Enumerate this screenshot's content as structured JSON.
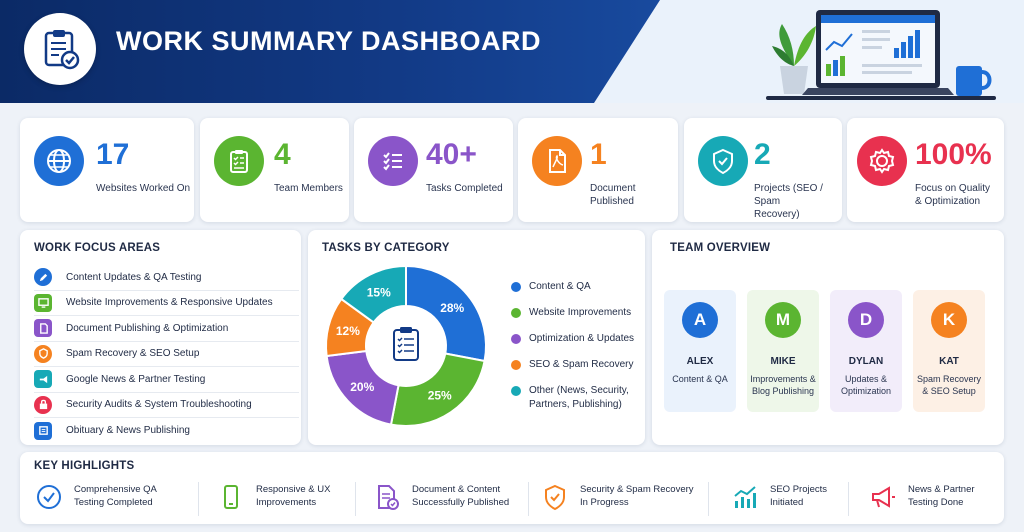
{
  "header": {
    "title": "WORK SUMMARY DASHBOARD"
  },
  "colors": {
    "navy": "#0b2a66",
    "blue": "#1f6fd6",
    "green": "#5bb531",
    "purple": "#8a55c9",
    "orange": "#f58220",
    "teal": "#17a9b6",
    "red": "#e8314f"
  },
  "stats": [
    {
      "value": "17",
      "label": "Websites Worked On",
      "icon": "globe-icon"
    },
    {
      "value": "4",
      "label": "Team Members",
      "icon": "clipboard-checklist-icon"
    },
    {
      "value": "40+",
      "label": "Tasks Completed",
      "icon": "task-list-icon"
    },
    {
      "value": "1",
      "label": "Document Published",
      "icon": "pdf-document-icon"
    },
    {
      "value": "2",
      "label_1": "Projects (SEO / Spam",
      "label_2": "Recovery)",
      "icon": "shield-check-icon"
    },
    {
      "value": "100%",
      "label_1": "Focus on Quality",
      "label_2": "& Optimization",
      "icon": "gear-icon"
    }
  ],
  "focus": {
    "title": "WORK FOCUS AREAS",
    "items": [
      {
        "label": "Content Updates & QA Testing",
        "icon": "pencil-icon"
      },
      {
        "label": "Website Improvements & Responsive Updates",
        "icon": "monitor-icon"
      },
      {
        "label": "Document Publishing & Optimization",
        "icon": "document-icon"
      },
      {
        "label": "Spam Recovery & SEO Setup",
        "icon": "shield-icon"
      },
      {
        "label": "Google News & Partner Testing",
        "icon": "megaphone-icon"
      },
      {
        "label": "Security Audits & System Troubleshooting",
        "icon": "lock-icon"
      },
      {
        "label": "Obituary & News Publishing",
        "icon": "newspaper-icon"
      }
    ]
  },
  "chart_data": {
    "type": "pie",
    "title": "TASKS BY CATEGORY",
    "categories": [
      "Content & QA",
      "Website Improvements",
      "Optimization & Updates",
      "SEO & Spam Recovery",
      "Other (News, Security, Partners, Publishing)"
    ],
    "values": [
      28,
      25,
      20,
      12,
      15
    ],
    "labels": [
      "28%",
      "25%",
      "20%",
      "12%",
      "15%"
    ],
    "colors": [
      "#1f6fd6",
      "#5bb531",
      "#8a55c9",
      "#f58220",
      "#17a9b6"
    ],
    "legend": [
      "Content & QA",
      "Website Improvements",
      "Optimization & Updates",
      "SEO & Spam Recovery"
    ],
    "legend_other_1": "Other (News, Security,",
    "legend_other_2": "Partners, Publishing)",
    "legend_position": "right"
  },
  "team": {
    "title": "TEAM OVERVIEW",
    "members": [
      {
        "initial": "A",
        "name": "ALEX",
        "role_1": "Content & QA",
        "role_2": ""
      },
      {
        "initial": "M",
        "name": "MIKE",
        "role_1": "Improvements &",
        "role_2": "Blog Publishing"
      },
      {
        "initial": "D",
        "name": "DYLAN",
        "role_1": "Updates &",
        "role_2": "Optimization"
      },
      {
        "initial": "K",
        "name": "KAT",
        "role_1": "Spam Recovery",
        "role_2": "& SEO Setup"
      }
    ]
  },
  "highlights": {
    "title": "KEY HIGHLIGHTS",
    "items": [
      {
        "line_1": "Comprehensive QA",
        "line_2": "Testing Completed",
        "icon": "check-circle-icon"
      },
      {
        "line_1": "Responsive & UX",
        "line_2": "Improvements",
        "icon": "smartphone-icon"
      },
      {
        "line_1": "Document & Content",
        "line_2": "Successfully Published",
        "icon": "document-check-icon"
      },
      {
        "line_1": "Security & Spam Recovery",
        "line_2": "In Progress",
        "icon": "shield-check-icon"
      },
      {
        "line_1": "SEO Projects",
        "line_2": "Initiated",
        "icon": "trend-chart-icon"
      },
      {
        "line_1": "News & Partner",
        "line_2": "Testing Done",
        "icon": "megaphone-icon"
      }
    ]
  }
}
